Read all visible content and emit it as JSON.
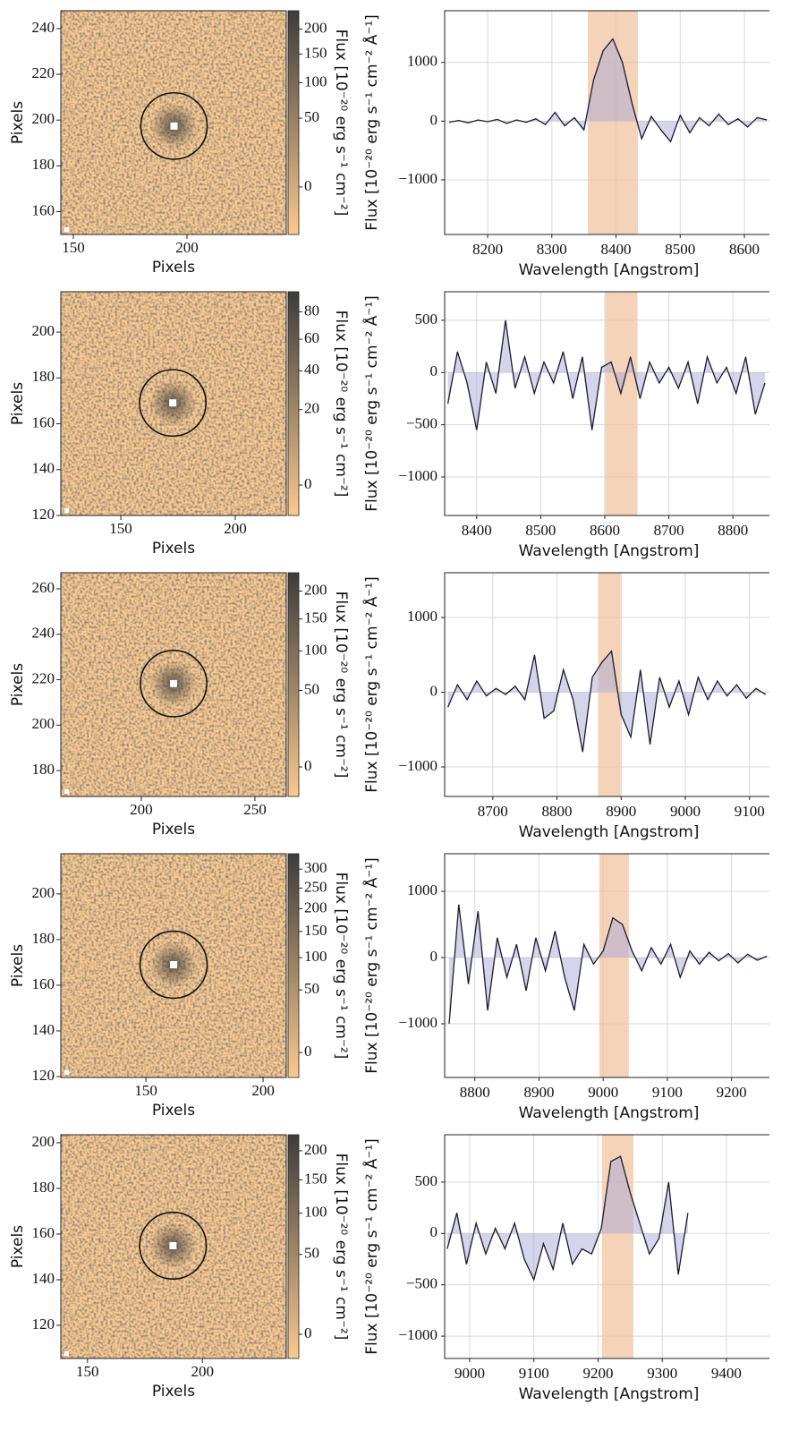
{
  "chart_data": [
    {
      "type": "image",
      "xlabel": "Pixels",
      "ylabel": "Pixels",
      "xlim": [
        144.5,
        243.7
      ],
      "ylim": [
        150,
        247.8
      ],
      "xticks": [
        150,
        200
      ],
      "yticks": [
        160,
        180,
        200,
        220,
        240
      ],
      "circle": {
        "x": 194.3,
        "y": 197.4,
        "r": 14.6
      },
      "colorbar": {
        "label": "Flux [10⁻²⁰ erg s⁻¹ cm⁻²]",
        "lim": [
          -27,
          240
        ],
        "ticks": [
          0,
          50,
          100,
          150,
          200
        ],
        "power": 0.6,
        "colors": [
          "#fbc98e",
          "#3c3c3c"
        ]
      }
    },
    {
      "type": "line",
      "xlabel": "Wavelength [Angstrom]",
      "ylabel": "Flux [10⁻²⁰ erg s⁻¹ cm⁻² Å⁻¹]",
      "xlim": [
        8133,
        8639
      ],
      "ylim": [
        -1930,
        1880
      ],
      "xticks": [
        8200,
        8300,
        8400,
        8500,
        8600
      ],
      "yticks": [
        {
          "value": -1000,
          "label": "−1000"
        },
        0,
        1000
      ],
      "band": [
        8356,
        8434
      ],
      "grid": true,
      "color": "#1a1a2e",
      "fill_color": "#a9a9d6",
      "band_color": "#f0c4a0",
      "x": [
        8140,
        8155,
        8170,
        8185,
        8200,
        8215,
        8230,
        8245,
        8260,
        8275,
        8290,
        8305,
        8320,
        8335,
        8350,
        8365,
        8380,
        8395,
        8410,
        8425,
        8440,
        8455,
        8470,
        8485,
        8500,
        8515,
        8530,
        8545,
        8560,
        8575,
        8590,
        8605,
        8620,
        8635
      ],
      "values": [
        -20,
        10,
        -30,
        20,
        -10,
        30,
        -40,
        20,
        -20,
        40,
        -60,
        150,
        -80,
        60,
        -150,
        700,
        1200,
        1400,
        1000,
        300,
        -300,
        80,
        -150,
        -350,
        100,
        -200,
        60,
        -80,
        120,
        -60,
        40,
        -100,
        60,
        20
      ]
    },
    {
      "type": "image",
      "xlabel": "Pixels",
      "ylabel": "Pixels",
      "xlim": [
        123.8,
        222.3
      ],
      "ylim": [
        120,
        217.6
      ],
      "xticks": [
        150,
        200
      ],
      "yticks": [
        120,
        140,
        160,
        180,
        200
      ],
      "circle": {
        "x": 172.7,
        "y": 169.1,
        "r": 14.5
      },
      "colorbar": {
        "label": "Flux [10⁻²⁰ erg s⁻¹ cm⁻²]",
        "lim": [
          -4.4,
          96
        ],
        "ticks": [
          0,
          20,
          40,
          60,
          80
        ],
        "power": 0.6,
        "colors": [
          "#fbc98e",
          "#3c3c3c"
        ]
      }
    },
    {
      "type": "line",
      "xlabel": "Wavelength [Angstrom]",
      "ylabel": "Flux [10⁻²⁰ erg s⁻¹ cm⁻² Å⁻¹]",
      "xlim": [
        8350,
        8857
      ],
      "ylim": [
        -1368,
        773
      ],
      "xticks": [
        8400,
        8500,
        8600,
        8700,
        8800
      ],
      "yticks": [
        {
          "value": -1000,
          "label": "−1000"
        },
        {
          "value": -500,
          "label": "−500"
        },
        0,
        500
      ],
      "band": [
        8601,
        8651
      ],
      "grid": true,
      "color": "#1a1a2e",
      "fill_color": "#a9a9d6",
      "band_color": "#f0c4a0",
      "x": [
        8355,
        8370,
        8385,
        8400,
        8415,
        8430,
        8445,
        8460,
        8475,
        8490,
        8505,
        8520,
        8535,
        8550,
        8565,
        8580,
        8595,
        8610,
        8625,
        8640,
        8655,
        8670,
        8685,
        8700,
        8715,
        8730,
        8745,
        8760,
        8775,
        8790,
        8805,
        8820,
        8835,
        8850
      ],
      "values": [
        -300,
        200,
        -100,
        -550,
        100,
        -200,
        500,
        -150,
        150,
        -200,
        100,
        -100,
        200,
        -250,
        150,
        -550,
        50,
        100,
        -200,
        150,
        -250,
        100,
        -100,
        50,
        -150,
        100,
        -300,
        150,
        -100,
        50,
        -200,
        150,
        -400,
        -100
      ]
    },
    {
      "type": "image",
      "xlabel": "Pixels",
      "ylabel": "Pixels",
      "xlim": [
        164.6,
        263.8
      ],
      "ylim": [
        168.6,
        267.1
      ],
      "xticks": [
        200,
        250
      ],
      "yticks": [
        180,
        200,
        220,
        240,
        260
      ],
      "circle": {
        "x": 214.2,
        "y": 218.3,
        "r": 14.6
      },
      "colorbar": {
        "label": "Flux [10⁻²⁰ erg s⁻¹ cm⁻²]",
        "lim": [
          -10.2,
          236
        ],
        "ticks": [
          0,
          50,
          100,
          150,
          200
        ],
        "power": 0.6,
        "colors": [
          "#fbc98e",
          "#3c3c3c"
        ]
      }
    },
    {
      "type": "line",
      "xlabel": "Wavelength [Angstrom]",
      "ylabel": "Flux [10⁻²⁰ erg s⁻¹ cm⁻² Å⁻¹]",
      "xlim": [
        8625,
        9131
      ],
      "ylim": [
        -1395,
        1599
      ],
      "xticks": [
        8700,
        8800,
        8900,
        9000,
        9100
      ],
      "yticks": [
        {
          "value": -1000,
          "label": "−1000"
        },
        0,
        1000
      ],
      "band": [
        8864,
        8899
      ],
      "grid": true,
      "color": "#1a1a2e",
      "fill_color": "#a9a9d6",
      "band_color": "#f0c4a0",
      "x": [
        8630,
        8645,
        8660,
        8675,
        8690,
        8705,
        8720,
        8735,
        8750,
        8765,
        8780,
        8795,
        8810,
        8825,
        8840,
        8855,
        8870,
        8885,
        8900,
        8915,
        8930,
        8945,
        8960,
        8975,
        8990,
        9005,
        9020,
        9035,
        9050,
        9065,
        9080,
        9095,
        9110,
        9125
      ],
      "values": [
        -200,
        100,
        -100,
        150,
        -50,
        50,
        -30,
        80,
        -100,
        500,
        -350,
        -250,
        300,
        -100,
        -800,
        200,
        400,
        550,
        -300,
        -600,
        300,
        -700,
        200,
        -200,
        150,
        -300,
        200,
        -100,
        150,
        -50,
        100,
        -80,
        50,
        -30
      ]
    },
    {
      "type": "image",
      "xlabel": "Pixels",
      "ylabel": "Pixels",
      "xlim": [
        113.7,
        209.9
      ],
      "ylim": [
        119.6,
        217.6
      ],
      "xticks": [
        150,
        200
      ],
      "yticks": [
        120,
        140,
        160,
        180,
        200
      ],
      "circle": {
        "x": 161.8,
        "y": 169,
        "r": 14.3
      },
      "colorbar": {
        "label": "Flux [10⁻²⁰ erg s⁻¹ cm⁻²]",
        "lim": [
          -10.8,
          343
        ],
        "ticks": [
          0,
          50,
          100,
          150,
          200,
          250,
          300
        ],
        "power": 0.6,
        "colors": [
          "#fbc98e",
          "#3c3c3c"
        ]
      }
    },
    {
      "type": "line",
      "xlabel": "Wavelength [Angstrom]",
      "ylabel": "Flux [10⁻²⁰ erg s⁻¹ cm⁻² Å⁻¹]",
      "xlim": [
        8753,
        9259
      ],
      "ylim": [
        -1811,
        1568
      ],
      "xticks": [
        8800,
        8900,
        9000,
        9100,
        9200
      ],
      "yticks": [
        {
          "value": -1000,
          "label": "−1000"
        },
        0,
        1000
      ],
      "band": [
        8994,
        9040
      ],
      "grid": true,
      "color": "#1a1a2e",
      "fill_color": "#a9a9d6",
      "band_color": "#f0c4a0",
      "x": [
        8760,
        8775,
        8790,
        8805,
        8820,
        8835,
        8850,
        8865,
        8880,
        8895,
        8910,
        8925,
        8940,
        8955,
        8970,
        8985,
        9000,
        9015,
        9030,
        9045,
        9060,
        9075,
        9090,
        9105,
        9120,
        9135,
        9150,
        9165,
        9180,
        9195,
        9210,
        9225,
        9240,
        9255
      ],
      "values": [
        -1000,
        800,
        -400,
        700,
        -800,
        300,
        -300,
        200,
        -500,
        300,
        -200,
        400,
        -300,
        -800,
        200,
        -100,
        100,
        600,
        500,
        100,
        -200,
        150,
        -100,
        200,
        -300,
        100,
        -100,
        80,
        -50,
        60,
        -80,
        50,
        -40,
        20
      ]
    },
    {
      "type": "image",
      "xlabel": "Pixels",
      "ylabel": "Pixels",
      "xlim": [
        138.4,
        236.5
      ],
      "ylim": [
        105.5,
        203.5
      ],
      "xticks": [
        150,
        200
      ],
      "yticks": [
        120,
        140,
        160,
        180,
        200
      ],
      "circle": {
        "x": 187.2,
        "y": 154.9,
        "r": 14.5
      },
      "colorbar": {
        "label": "Flux [10⁻²⁰ erg s⁻¹ cm⁻²]",
        "lim": [
          -6.8,
          230
        ],
        "ticks": [
          0,
          50,
          100,
          150,
          200
        ],
        "power": 0.6,
        "colors": [
          "#fbc98e",
          "#3c3c3c"
        ]
      }
    },
    {
      "type": "line",
      "xlabel": "Wavelength [Angstrom]",
      "ylabel": "Flux [10⁻²⁰ erg s⁻¹ cm⁻² Å⁻¹]",
      "xlim": [
        8961,
        9467
      ],
      "ylim": [
        -1217,
        961
      ],
      "xticks": [
        9000,
        9100,
        9200,
        9300,
        9400
      ],
      "yticks": [
        {
          "value": -1000,
          "label": "−1000"
        },
        {
          "value": -500,
          "label": "−500"
        },
        0,
        500
      ],
      "band": [
        9206,
        9255
      ],
      "grid": true,
      "color": "#1a1a2e",
      "fill_color": "#a9a9d6",
      "band_color": "#f0c4a0",
      "x": [
        8965,
        8980,
        8995,
        9010,
        9025,
        9040,
        9055,
        9070,
        9085,
        9100,
        9115,
        9130,
        9145,
        9160,
        9175,
        9190,
        9205,
        9220,
        9235,
        9250,
        9265,
        9280,
        9295,
        9310,
        9325,
        9340
      ],
      "values": [
        -150,
        200,
        -300,
        100,
        -200,
        50,
        -150,
        100,
        -250,
        -450,
        -100,
        -350,
        100,
        -300,
        -150,
        -200,
        50,
        700,
        750,
        400,
        100,
        -200,
        -50,
        500,
        -400,
        200
      ]
    }
  ]
}
